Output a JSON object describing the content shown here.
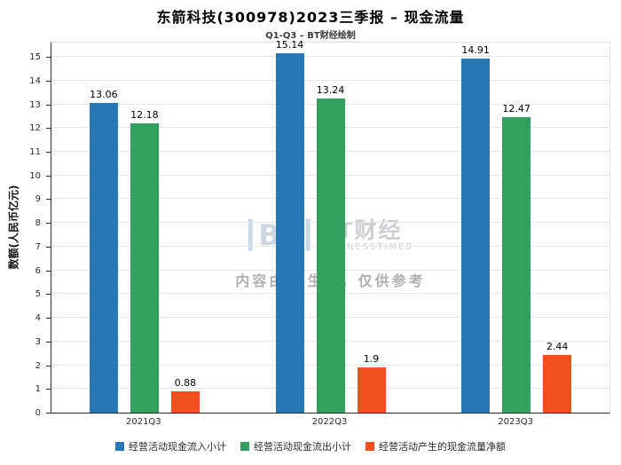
{
  "chart_data": {
    "type": "bar",
    "title": "东箭科技(300978)2023三季报 – 现金流量",
    "subtitle": "Q1-Q3 – BT财经绘制",
    "ylabel": "数额(人民币亿元)",
    "xlabel": "",
    "categories": [
      "2021Q3",
      "2022Q3",
      "2023Q3"
    ],
    "series": [
      {
        "name": "经营活动现金流入小计",
        "color": "#2878b5",
        "values": [
          13.06,
          15.14,
          14.91
        ]
      },
      {
        "name": "经营活动现金流出小计",
        "color": "#32a05f",
        "values": [
          12.18,
          13.24,
          12.47
        ]
      },
      {
        "name": "经营活动产生的现金流量净额",
        "color": "#f3501e",
        "values": [
          0.88,
          1.9,
          2.44
        ]
      }
    ],
    "ylim": [
      0,
      15.6
    ],
    "yticks": [
      0,
      1,
      2,
      3,
      4,
      5,
      6,
      7,
      8,
      9,
      10,
      11,
      12,
      13,
      14,
      15
    ],
    "grid": true,
    "legend_position": "bottom"
  },
  "watermark": {
    "logo_mark": "BT",
    "logo_cn": "BT财经",
    "logo_en": "BUSINESSTIMES",
    "disclaimer": "内容由AI生成，仅供参考"
  },
  "colors": {
    "inflow_blue": "#2878b5",
    "outflow_green": "#32a05f",
    "net_orange": "#f3501e",
    "gridline": "#e4e4e4",
    "axis": "#2a2a2a"
  }
}
